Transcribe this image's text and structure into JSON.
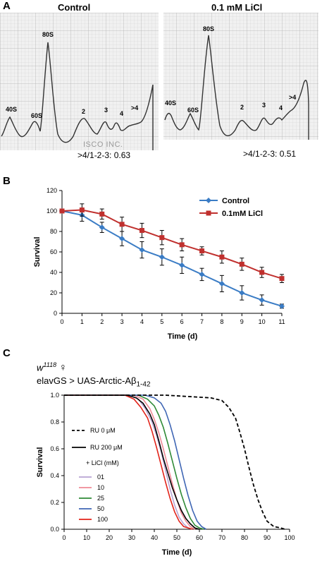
{
  "panels": {
    "a": {
      "letter": "A",
      "left_title": "Control",
      "right_title": "0.1 mM LiCl",
      "watermark": "ISCO INC.",
      "left_ratio": ">4/1-2-3: 0.63",
      "right_ratio": ">4/1-2-3: 0.51",
      "left_peaks": [
        "40S",
        "60S",
        "80S",
        "2",
        "3",
        "4",
        ">4"
      ],
      "right_peaks": [
        "40S",
        "60S",
        "80S",
        "2",
        "3",
        "4",
        ">4"
      ]
    },
    "b": {
      "letter": "B"
    },
    "c": {
      "letter": "C",
      "genotype_base": "w",
      "genotype_sup": "1118",
      "genotype_symbol": "♀",
      "genotype_line2_base": "elavGS > UAS-Arctic-Aβ",
      "genotype_line2_sub": "1-42"
    }
  },
  "chart_data": [
    {
      "type": "line",
      "title": "",
      "xlabel": "Time (d)",
      "ylabel": "Survival",
      "xlim": [
        0,
        11
      ],
      "ylim": [
        0,
        120
      ],
      "xticks": [
        0,
        1,
        2,
        3,
        4,
        5,
        6,
        7,
        8,
        9,
        10,
        11
      ],
      "yticks": [
        0,
        20,
        40,
        60,
        80,
        100,
        120
      ],
      "legend_position": "top-right",
      "grid": false,
      "series": [
        {
          "name": "Control",
          "color": "#3a7cc5",
          "marker": "diamond",
          "x": [
            0,
            1,
            2,
            3,
            4,
            5,
            6,
            7,
            8,
            9,
            10,
            11
          ],
          "y": [
            100,
            96,
            84,
            73,
            62,
            55,
            47,
            38,
            29,
            20,
            13,
            7
          ],
          "err": [
            0,
            6,
            5,
            7,
            8,
            8,
            8,
            6,
            8,
            7,
            5,
            2
          ]
        },
        {
          "name": "0.1mM LiCl",
          "color": "#c0302e",
          "marker": "square",
          "x": [
            0,
            1,
            2,
            3,
            4,
            5,
            6,
            7,
            8,
            9,
            10,
            11
          ],
          "y": [
            100,
            101,
            97,
            87,
            81,
            74,
            67,
            61,
            55,
            48,
            40,
            34
          ],
          "err": [
            0,
            6,
            5,
            7,
            7,
            7,
            6,
            4,
            6,
            6,
            5,
            4
          ]
        }
      ]
    },
    {
      "type": "line",
      "title": "",
      "xlabel": "Time (d)",
      "ylabel": "Survival",
      "xlim": [
        0,
        100
      ],
      "ylim": [
        0,
        1.0
      ],
      "xticks": [
        0,
        10,
        20,
        30,
        40,
        50,
        60,
        70,
        80,
        90,
        100
      ],
      "yticks": [
        "0.0",
        "0.2",
        "0.4",
        "0.6",
        "0.8",
        "1.0"
      ],
      "grid": false,
      "legend_position": "left",
      "legend_header": "+ LiCl (mM)",
      "series": [
        {
          "name": "RU 0 μM",
          "color": "#000000",
          "dash": true,
          "x": [
            0,
            30,
            45,
            55,
            65,
            70,
            73,
            76,
            78,
            80,
            82,
            84,
            86,
            88,
            90,
            93,
            96,
            98
          ],
          "y": [
            1,
            1,
            1,
            0.99,
            0.98,
            0.96,
            0.91,
            0.83,
            0.72,
            0.6,
            0.46,
            0.33,
            0.22,
            0.13,
            0.06,
            0.02,
            0.01,
            0
          ]
        },
        {
          "name": "RU 200 μM",
          "color": "#000000",
          "x": [
            0,
            28,
            32,
            35,
            38,
            40,
            42,
            44,
            46,
            48,
            50,
            52,
            54,
            56,
            58,
            60
          ],
          "y": [
            1,
            1,
            0.98,
            0.94,
            0.86,
            0.78,
            0.66,
            0.53,
            0.42,
            0.31,
            0.22,
            0.14,
            0.08,
            0.04,
            0.01,
            0
          ]
        },
        {
          "name": "01",
          "color": "#b7a3d3",
          "x": [
            0,
            29,
            33,
            36,
            39,
            41,
            43,
            45,
            47,
            49,
            51,
            53,
            55,
            57
          ],
          "y": [
            1,
            1,
            0.97,
            0.9,
            0.8,
            0.7,
            0.58,
            0.44,
            0.3,
            0.18,
            0.09,
            0.04,
            0.01,
            0
          ]
        },
        {
          "name": "10",
          "color": "#ef8a96",
          "x": [
            0,
            31,
            35,
            38,
            40,
            42,
            44,
            46,
            48,
            50,
            52,
            54,
            56,
            58
          ],
          "y": [
            1,
            1,
            0.97,
            0.9,
            0.82,
            0.72,
            0.6,
            0.47,
            0.34,
            0.22,
            0.12,
            0.06,
            0.02,
            0
          ]
        },
        {
          "name": "25",
          "color": "#2f8a36",
          "x": [
            0,
            33,
            37,
            40,
            42,
            44,
            46,
            48,
            50,
            52,
            54,
            56,
            58,
            60,
            62
          ],
          "y": [
            1,
            1,
            0.97,
            0.92,
            0.85,
            0.76,
            0.64,
            0.51,
            0.38,
            0.26,
            0.16,
            0.08,
            0.03,
            0.01,
            0
          ]
        },
        {
          "name": "50",
          "color": "#3f66b4",
          "x": [
            0,
            36,
            40,
            43,
            45,
            47,
            49,
            51,
            53,
            55,
            57,
            59,
            61,
            63
          ],
          "y": [
            1,
            1,
            0.98,
            0.94,
            0.88,
            0.78,
            0.66,
            0.52,
            0.38,
            0.25,
            0.14,
            0.06,
            0.02,
            0
          ]
        },
        {
          "name": "100",
          "color": "#e2231a",
          "x": [
            0,
            27,
            31,
            34,
            37,
            39,
            41,
            43,
            45,
            47,
            49,
            51,
            53,
            55,
            57
          ],
          "y": [
            1,
            1,
            0.97,
            0.91,
            0.83,
            0.73,
            0.61,
            0.48,
            0.35,
            0.23,
            0.13,
            0.06,
            0.02,
            0.01,
            0
          ]
        }
      ]
    }
  ]
}
